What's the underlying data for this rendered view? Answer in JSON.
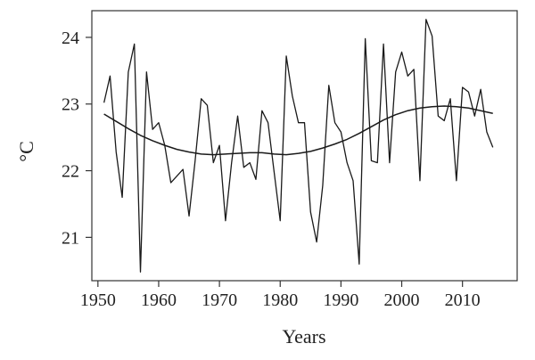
{
  "chart_data": {
    "type": "line",
    "title": "",
    "xlabel": "Years",
    "ylabel": "°C",
    "xlim": [
      1949,
      2019
    ],
    "ylim": [
      20.35,
      24.4
    ],
    "xticks": [
      1950,
      1960,
      1970,
      1980,
      1990,
      2000,
      2010
    ],
    "yticks": [
      21,
      22,
      23,
      24
    ],
    "grid": false,
    "legend": "none",
    "colors": {
      "line": "#1a1a1a",
      "axis": "#333333"
    },
    "series": [
      {
        "x": [
          1951,
          1952,
          1953,
          1954,
          1955,
          1956,
          1957,
          1958,
          1959,
          1960,
          1961,
          1962,
          1963,
          1964,
          1965,
          1966,
          1967,
          1968,
          1969,
          1970,
          1971,
          1972,
          1973,
          1974,
          1975,
          1976,
          1977,
          1978,
          1979,
          1980,
          1981,
          1982,
          1983,
          1984,
          1985,
          1986,
          1987,
          1988,
          1989,
          1990,
          1991,
          1992,
          1993,
          1994,
          1995,
          1996,
          1997,
          1998,
          1999,
          2000,
          2001,
          2002,
          2003,
          2004,
          2005,
          2006,
          2007,
          2008,
          2009,
          2010,
          2011,
          2012,
          2013,
          2014,
          2015
        ],
        "values": [
          23.02,
          23.42,
          22.28,
          21.6,
          23.48,
          23.9,
          20.48,
          23.48,
          22.62,
          22.72,
          22.38,
          21.82,
          21.92,
          22.02,
          21.32,
          22.15,
          23.08,
          22.98,
          22.12,
          22.38,
          21.25,
          22.12,
          22.82,
          22.05,
          22.12,
          21.87,
          22.9,
          22.72,
          21.98,
          21.25,
          23.72,
          23.12,
          22.72,
          22.72,
          21.38,
          20.93,
          21.78,
          23.28,
          22.72,
          22.58,
          22.12,
          21.85,
          20.6,
          23.98,
          22.15,
          22.12,
          23.9,
          22.12,
          23.48,
          23.78,
          23.42,
          23.52,
          21.85,
          24.27,
          24.02,
          22.82,
          22.75,
          23.08,
          21.85,
          23.25,
          23.18,
          22.82,
          23.22,
          22.58,
          22.35
        ]
      },
      {
        "x": [
          1951,
          1953,
          1955,
          1957,
          1959,
          1961,
          1963,
          1965,
          1967,
          1969,
          1971,
          1973,
          1975,
          1977,
          1979,
          1981,
          1983,
          1985,
          1987,
          1989,
          1991,
          1993,
          1995,
          1997,
          1999,
          2001,
          2003,
          2005,
          2007,
          2009,
          2011,
          2013,
          2015
        ],
        "values": [
          22.85,
          22.74,
          22.63,
          22.53,
          22.45,
          22.38,
          22.32,
          22.28,
          22.25,
          22.24,
          22.25,
          22.26,
          22.27,
          22.27,
          22.25,
          22.24,
          22.26,
          22.29,
          22.34,
          22.4,
          22.47,
          22.56,
          22.66,
          22.76,
          22.84,
          22.9,
          22.94,
          22.96,
          22.97,
          22.96,
          22.94,
          22.9,
          22.86
        ]
      }
    ]
  }
}
